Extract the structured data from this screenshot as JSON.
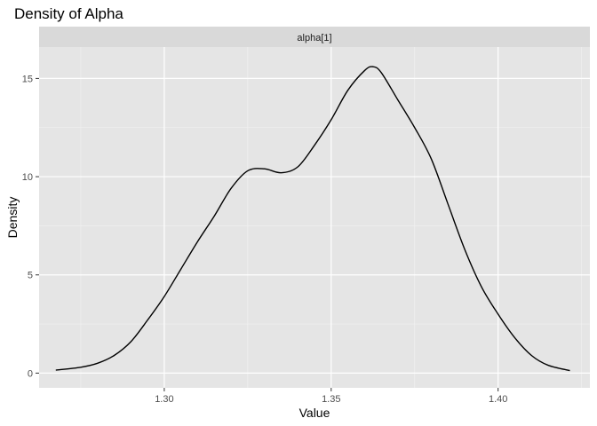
{
  "chart_data": {
    "type": "line",
    "title": "Density of Alpha",
    "facet_label": "alpha[1]",
    "xlabel": "Value",
    "ylabel": "Density",
    "xlim": [
      1.2625,
      1.4275
    ],
    "ylim": [
      -0.75,
      16.6
    ],
    "x_major_ticks": [
      1.3,
      1.35,
      1.4
    ],
    "x_minor_ticks": [
      1.275,
      1.325,
      1.375,
      1.425
    ],
    "x_tick_labels": [
      "1.30",
      "1.35",
      "1.40"
    ],
    "y_major_ticks": [
      0,
      5,
      10,
      15
    ],
    "y_minor_ticks": [
      2.5,
      7.5,
      12.5
    ],
    "y_tick_labels": [
      "0",
      "5",
      "10",
      "15"
    ],
    "grid": true,
    "series": [
      {
        "line_color": "#000000",
        "x": [
          1.2675,
          1.275,
          1.28,
          1.285,
          1.29,
          1.295,
          1.3,
          1.305,
          1.31,
          1.315,
          1.32,
          1.325,
          1.33,
          1.335,
          1.34,
          1.345,
          1.35,
          1.355,
          1.36,
          1.3625,
          1.365,
          1.37,
          1.375,
          1.38,
          1.385,
          1.39,
          1.395,
          1.4,
          1.405,
          1.41,
          1.415,
          1.4215
        ],
        "y": [
          0.15,
          0.3,
          0.5,
          0.9,
          1.6,
          2.7,
          3.9,
          5.3,
          6.7,
          8.0,
          9.4,
          10.3,
          10.4,
          10.2,
          10.5,
          11.6,
          12.9,
          14.4,
          15.4,
          15.6,
          15.3,
          13.9,
          12.5,
          10.9,
          8.6,
          6.3,
          4.4,
          3.0,
          1.8,
          0.9,
          0.4,
          0.13
        ]
      }
    ],
    "colors": {
      "panel_background": "#e5e5e5",
      "strip_background": "#d9d9d9",
      "grid_major": "#ffffff",
      "grid_minor": "#f2f2f2",
      "line": "#000000"
    }
  }
}
